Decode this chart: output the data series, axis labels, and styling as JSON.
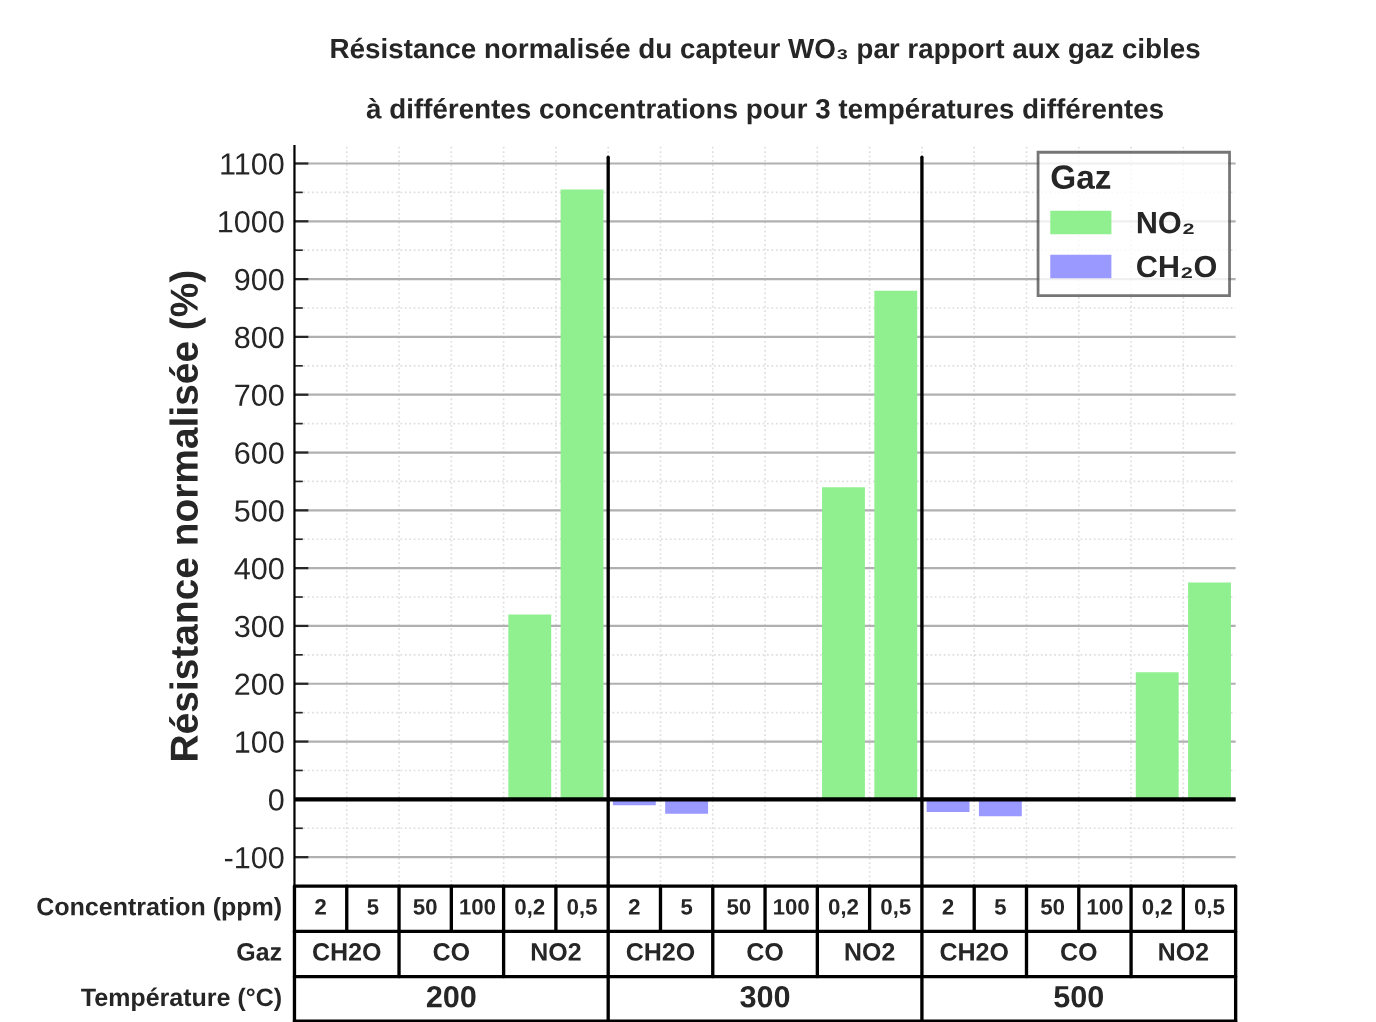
{
  "chart_data": {
    "type": "bar",
    "title": "Résistance normalisée du capteur WO₃ par rapport aux gaz cibles\n\nà différentes concentrations pour 3 températures différentes",
    "ylabel": "Résistance normalisée (%)",
    "legend_title": "Gaz",
    "categories": [
      "2",
      "5",
      "50",
      "100",
      "0,2",
      "0,5",
      "2",
      "5",
      "50",
      "100",
      "0,2",
      "0,5",
      "2",
      "5",
      "50",
      "100",
      "0,2",
      "0,5"
    ],
    "series": [
      {
        "name": "NO₂",
        "color": "#90f090",
        "values": [
          null,
          null,
          null,
          null,
          320,
          1055,
          null,
          null,
          null,
          null,
          540,
          880,
          null,
          null,
          null,
          null,
          220,
          375
        ]
      },
      {
        "name": "CH₂O",
        "color": "#9999ff",
        "values": [
          null,
          null,
          null,
          null,
          null,
          null,
          -10,
          -25,
          null,
          null,
          null,
          null,
          -22,
          -29,
          null,
          null,
          null,
          null
        ]
      }
    ],
    "ylim": [
      -150,
      1130
    ],
    "yticks": [
      -100,
      0,
      100,
      200,
      300,
      400,
      500,
      600,
      700,
      800,
      900,
      1000,
      1100
    ],
    "grid": true,
    "legend": "top right",
    "ref_lines": [
      {
        "axis": "y",
        "value": 0,
        "color": "#000000"
      }
    ],
    "annotations": [
      "Concentration (ppm)",
      "Gaz",
      "Température (°C)",
      "CH2O",
      "CO",
      "NO2",
      "CH2O",
      "CO",
      "NO2",
      "CH2O",
      "CO",
      "NO2",
      "200",
      "300",
      "500"
    ]
  }
}
